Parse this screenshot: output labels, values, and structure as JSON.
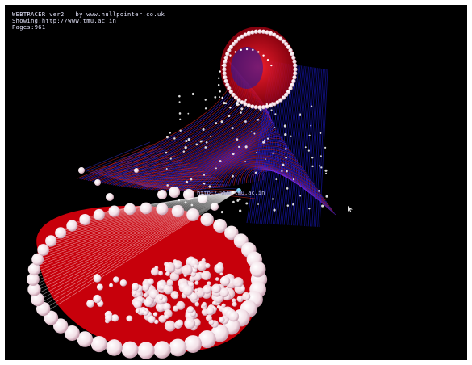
{
  "app": {
    "title": "WEBTRACER ver2",
    "credit": "by www.nullpointer.co.uk"
  },
  "hud": {
    "showing_label": "Showing:",
    "showing_url": "http://www.tmu.ac.in",
    "pages_label": "Pages:",
    "pages_count": "961"
  },
  "visualization": {
    "root_node_label": "http://www.tmu.ac.in",
    "colors": {
      "background": "#000000",
      "node": "#ffffff",
      "link_red": "#ff1a1a",
      "link_blue": "#2a2aff",
      "highlight_node": "#7fd7ff"
    }
  },
  "icons": {
    "cursor": "mouse-pointer-icon"
  }
}
